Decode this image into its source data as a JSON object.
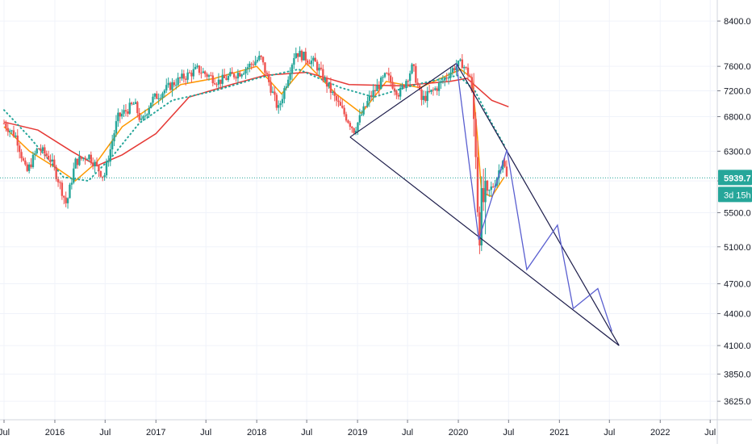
{
  "chart_data": {
    "type": "candlestick",
    "title": "",
    "xlabel": "",
    "ylabel": "",
    "y_scale": "log",
    "ylim": [
      3480,
      8800
    ],
    "xlim": [
      "2015-07-01",
      "2022-07-15"
    ],
    "grid": true,
    "x_ticks": [
      {
        "label": "Jul",
        "date": "2015-07-01"
      },
      {
        "label": "2016",
        "date": "2016-01-01"
      },
      {
        "label": "Jul",
        "date": "2016-07-01"
      },
      {
        "label": "2017",
        "date": "2017-01-01"
      },
      {
        "label": "Jul",
        "date": "2017-07-01"
      },
      {
        "label": "2018",
        "date": "2018-01-01"
      },
      {
        "label": "Jul",
        "date": "2018-07-01"
      },
      {
        "label": "2019",
        "date": "2019-01-01"
      },
      {
        "label": "Jul",
        "date": "2019-07-01"
      },
      {
        "label": "2020",
        "date": "2020-01-01"
      },
      {
        "label": "Jul",
        "date": "2020-07-01"
      },
      {
        "label": "2021",
        "date": "2021-01-01"
      },
      {
        "label": "Jul",
        "date": "2021-07-01"
      },
      {
        "label": "2022",
        "date": "2022-01-01"
      },
      {
        "label": "Jul",
        "date": "2022-07-01"
      }
    ],
    "y_ticks": [
      "8400.0",
      "7600.0",
      "7200.0",
      "6800.0",
      "6300.0",
      "5900.0",
      "5500.0",
      "5100.0",
      "4700.0",
      "4400.0",
      "4100.0",
      "3850.0",
      "3625.0"
    ],
    "last_price": {
      "value": 5939.7,
      "label": "5939.7",
      "countdown": "3d 15h",
      "color": "#26a69a"
    },
    "colors": {
      "up": "#26a69a",
      "down": "#ef5350",
      "grid": "#f0f3fa",
      "axis_text": "#131722",
      "drawing": "#1c1c4a",
      "wave": "#5a5fd0"
    },
    "price_path": [
      {
        "date": "2015-07-01",
        "value": 6700
      },
      {
        "date": "2015-08-15",
        "value": 6500
      },
      {
        "date": "2015-09-20",
        "value": 6000
      },
      {
        "date": "2015-11-01",
        "value": 6350
      },
      {
        "date": "2015-12-15",
        "value": 6200
      },
      {
        "date": "2016-01-15",
        "value": 5900
      },
      {
        "date": "2016-02-12",
        "value": 5600
      },
      {
        "date": "2016-03-15",
        "value": 6150
      },
      {
        "date": "2016-05-01",
        "value": 6250
      },
      {
        "date": "2016-06-27",
        "value": 5950
      },
      {
        "date": "2016-08-15",
        "value": 6780
      },
      {
        "date": "2016-10-15",
        "value": 7000
      },
      {
        "date": "2016-11-10",
        "value": 6700
      },
      {
        "date": "2016-12-15",
        "value": 7050
      },
      {
        "date": "2017-03-15",
        "value": 7350
      },
      {
        "date": "2017-06-01",
        "value": 7550
      },
      {
        "date": "2017-08-15",
        "value": 7350
      },
      {
        "date": "2017-11-01",
        "value": 7500
      },
      {
        "date": "2018-01-15",
        "value": 7750
      },
      {
        "date": "2018-03-20",
        "value": 6900
      },
      {
        "date": "2018-05-20",
        "value": 7850
      },
      {
        "date": "2018-08-01",
        "value": 7650
      },
      {
        "date": "2018-10-15",
        "value": 7050
      },
      {
        "date": "2018-12-20",
        "value": 6600
      },
      {
        "date": "2019-02-15",
        "value": 7100
      },
      {
        "date": "2019-04-15",
        "value": 7450
      },
      {
        "date": "2019-06-01",
        "value": 7150
      },
      {
        "date": "2019-07-20",
        "value": 7600
      },
      {
        "date": "2019-08-20",
        "value": 7050
      },
      {
        "date": "2019-10-15",
        "value": 7250
      },
      {
        "date": "2019-12-20",
        "value": 7600
      },
      {
        "date": "2020-01-15",
        "value": 7650
      },
      {
        "date": "2020-02-15",
        "value": 7400
      },
      {
        "date": "2020-03-05",
        "value": 6300
      },
      {
        "date": "2020-03-15",
        "value": 5200
      },
      {
        "date": "2020-03-25",
        "value": 5600
      },
      {
        "date": "2020-04-20",
        "value": 5750
      },
      {
        "date": "2020-05-15",
        "value": 5900
      },
      {
        "date": "2020-06-10",
        "value": 6200
      },
      {
        "date": "2020-06-24",
        "value": 5939.7
      }
    ],
    "moving_averages": [
      {
        "name": "",
        "color": "#ff9800",
        "dash": false,
        "points": [
          {
            "date": "2015-07-01",
            "value": 6650
          },
          {
            "date": "2015-10-01",
            "value": 6300
          },
          {
            "date": "2016-01-15",
            "value": 6050
          },
          {
            "date": "2016-03-15",
            "value": 5900
          },
          {
            "date": "2016-06-01",
            "value": 6150
          },
          {
            "date": "2016-09-01",
            "value": 6650
          },
          {
            "date": "2016-12-15",
            "value": 6950
          },
          {
            "date": "2017-04-01",
            "value": 7300
          },
          {
            "date": "2017-08-01",
            "value": 7400
          },
          {
            "date": "2018-01-01",
            "value": 7600
          },
          {
            "date": "2018-04-01",
            "value": 7150
          },
          {
            "date": "2018-07-01",
            "value": 7650
          },
          {
            "date": "2018-10-15",
            "value": 7150
          },
          {
            "date": "2019-01-15",
            "value": 6850
          },
          {
            "date": "2019-04-15",
            "value": 7350
          },
          {
            "date": "2019-08-15",
            "value": 7250
          },
          {
            "date": "2020-01-10",
            "value": 7550
          },
          {
            "date": "2020-02-20",
            "value": 7400
          },
          {
            "date": "2020-03-10",
            "value": 6500
          },
          {
            "date": "2020-03-25",
            "value": 5750
          },
          {
            "date": "2020-05-01",
            "value": 5700
          },
          {
            "date": "2020-06-15",
            "value": 5950
          }
        ]
      },
      {
        "name": "",
        "color": "#e53935",
        "dash": false,
        "points": [
          {
            "date": "2015-07-01",
            "value": 6720
          },
          {
            "date": "2015-11-01",
            "value": 6600
          },
          {
            "date": "2016-03-01",
            "value": 6300
          },
          {
            "date": "2016-06-01",
            "value": 6100
          },
          {
            "date": "2016-09-01",
            "value": 6250
          },
          {
            "date": "2017-01-01",
            "value": 6550
          },
          {
            "date": "2017-05-01",
            "value": 7100
          },
          {
            "date": "2017-10-01",
            "value": 7300
          },
          {
            "date": "2018-02-01",
            "value": 7450
          },
          {
            "date": "2018-07-01",
            "value": 7500
          },
          {
            "date": "2018-12-01",
            "value": 7300
          },
          {
            "date": "2019-06-01",
            "value": 7280
          },
          {
            "date": "2019-12-01",
            "value": 7350
          },
          {
            "date": "2020-02-01",
            "value": 7400
          },
          {
            "date": "2020-03-10",
            "value": 7250
          },
          {
            "date": "2020-05-01",
            "value": 7050
          },
          {
            "date": "2020-07-01",
            "value": 6950
          }
        ]
      },
      {
        "name": "",
        "color": "#26a69a",
        "dash": true,
        "points": [
          {
            "date": "2015-07-01",
            "value": 6900
          },
          {
            "date": "2015-10-01",
            "value": 6500
          },
          {
            "date": "2016-02-01",
            "value": 5950
          },
          {
            "date": "2016-05-01",
            "value": 5900
          },
          {
            "date": "2016-08-01",
            "value": 6250
          },
          {
            "date": "2016-11-01",
            "value": 6700
          },
          {
            "date": "2017-03-01",
            "value": 7050
          },
          {
            "date": "2017-08-01",
            "value": 7200
          },
          {
            "date": "2018-01-01",
            "value": 7400
          },
          {
            "date": "2018-06-01",
            "value": 7550
          },
          {
            "date": "2018-11-01",
            "value": 7250
          },
          {
            "date": "2019-03-01",
            "value": 7100
          },
          {
            "date": "2019-08-01",
            "value": 7300
          },
          {
            "date": "2020-01-01",
            "value": 7450
          },
          {
            "date": "2020-03-01",
            "value": 7200
          },
          {
            "date": "2020-05-01",
            "value": 6700
          },
          {
            "date": "2020-06-20",
            "value": 6350
          }
        ]
      }
    ],
    "drawings": {
      "wedge_lines": [
        {
          "from": {
            "date": "2018-12-05",
            "value": 6500
          },
          "to": {
            "date": "2021-08-05",
            "value": 4100
          }
        },
        {
          "from": {
            "date": "2019-12-25",
            "value": 7650
          },
          "to": {
            "date": "2021-08-05",
            "value": 4100
          }
        },
        {
          "from": {
            "date": "2018-12-05",
            "value": 6500
          },
          "to": {
            "date": "2019-12-25",
            "value": 7650
          }
        }
      ],
      "wave_path": [
        {
          "date": "2019-12-25",
          "value": 7650
        },
        {
          "date": "2020-03-15",
          "value": 5180
        },
        {
          "date": "2020-06-25",
          "value": 6320
        },
        {
          "date": "2020-09-05",
          "value": 4850
        },
        {
          "date": "2020-12-25",
          "value": 5350
        },
        {
          "date": "2021-02-20",
          "value": 4450
        },
        {
          "date": "2021-05-20",
          "value": 4650
        },
        {
          "date": "2021-07-10",
          "value": 4230
        }
      ]
    }
  }
}
